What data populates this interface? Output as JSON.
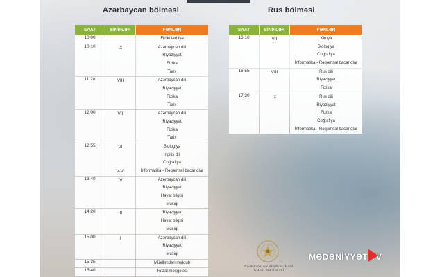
{
  "sections": {
    "az_title": "Azərbaycan bölməsi",
    "ru_title": "Rus bölməsi"
  },
  "headers": {
    "time": "SAAT",
    "grades": "SİNİFLƏR",
    "subjects": "FƏNLƏR"
  },
  "az_rows": [
    {
      "time": "10:00",
      "grades": [],
      "subjects": [
        "Fiziki tərbiyə"
      ]
    },
    {
      "time": "10:10",
      "grades": [
        "IX"
      ],
      "subjects": [
        "Azərbaycan dili",
        "Riyaziyyat",
        "Fizika",
        "Tarix"
      ]
    },
    {
      "time": "11:20",
      "grades": [
        "VIII"
      ],
      "subjects": [
        "Azərbaycan dili",
        "Riyaziyyat",
        "Fizika",
        "Tarix"
      ]
    },
    {
      "time": "12:00",
      "grades": [
        "VII"
      ],
      "subjects": [
        "Azərbaycan dili",
        "Riyaziyyat",
        "Fizika",
        "Tarix"
      ]
    },
    {
      "time": "12:55",
      "grades": [
        "VI",
        "",
        "",
        "V-VI"
      ],
      "subjects": [
        "Biologiya",
        "İngilis dili",
        "Coğrafiya",
        "İnformatika - Rəqəmsal bacarıqlar"
      ]
    },
    {
      "time": "13:40",
      "grades": [
        "IV"
      ],
      "subjects": [
        "Azərbaycan dili",
        "Riyaziyyat",
        "Həyat bilgisi",
        "Musiqi"
      ]
    },
    {
      "time": "14:20",
      "grades": [
        "III"
      ],
      "subjects": [
        "Riyaziyyat",
        "Həyat bilgisi",
        "Musiqi"
      ]
    },
    {
      "time": "15:00",
      "grades": [
        "I"
      ],
      "subjects": [
        "Azərbaycan dili",
        "Riyaziyyat",
        "Musiqi"
      ]
    },
    {
      "time": "15:35",
      "grades": [],
      "subjects": [
        "Müəllimdən məktub"
      ]
    },
    {
      "time": "15:40",
      "grades": [],
      "subjects": [
        "Futzal məşğələsi"
      ]
    }
  ],
  "ru_rows": [
    {
      "time": "16:10",
      "grades": [
        "VII"
      ],
      "subjects": [
        "Kimya",
        "Biologiya",
        "Coğrafiya",
        "İnformatika - Rəqəmsal bacarıqlar"
      ]
    },
    {
      "time": "16:55",
      "grades": [
        "VIII"
      ],
      "subjects": [
        "Rus dili",
        "Riyaziyyat",
        "Fizika"
      ]
    },
    {
      "time": "17:30",
      "grades": [
        "IX"
      ],
      "subjects": [
        "Rus dili",
        "Riyaziyyat",
        "Fizika",
        "Coğrafiya",
        "İnformatika - Rəqəmsal bacarıqlar"
      ]
    }
  ],
  "footer": {
    "ministry_line1": "AZƏRBAYCAN RESPUBLİKASI",
    "ministry_line2": "TƏHSİL NAZİRLİYİ",
    "tv_logo": "MƏDƏNİYYƏT TV"
  },
  "colors": {
    "header_green": "#8bb23a",
    "header_orange": "#ef7b22",
    "tv_red": "#e0312b"
  },
  "icons": {
    "emblem": "ministry-emblem-icon",
    "tv_play": "play-triangle-icon"
  }
}
